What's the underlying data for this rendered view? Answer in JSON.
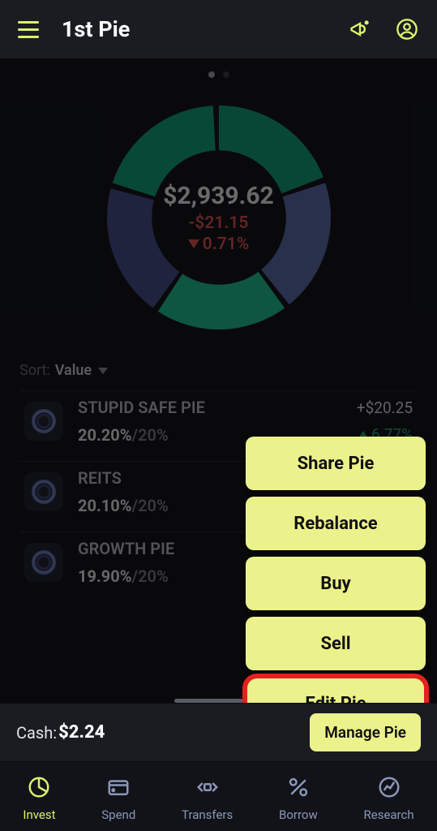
{
  "header": {
    "title": "1st Pie"
  },
  "colors": {
    "accent": "#d9f26e",
    "menu_bg": "#ecf28b",
    "negative": "#d9534f",
    "positive": "#2fa56a",
    "highlight_ring": "#e62020",
    "background": "#14161c"
  },
  "pagination": {
    "count": 2,
    "active": 0
  },
  "chart": {
    "type": "donut",
    "total": "$2,939.62",
    "change_abs": "-$21.15",
    "change_pct": "0.71%",
    "change_dir": "down",
    "slices": [
      {
        "color": "#159e76",
        "pct": 20
      },
      {
        "color": "#5a6aa8",
        "pct": 20
      },
      {
        "color": "#1fbf8e",
        "pct": 20
      },
      {
        "color": "#454f8a",
        "pct": 20
      },
      {
        "color": "#13a07a",
        "pct": 20
      }
    ],
    "inner_radius": 0.6,
    "outer_radius": 1.0
  },
  "sort": {
    "label": "Sort:",
    "value": "Value"
  },
  "holdings": [
    {
      "name": "STUPID SAFE PIE",
      "actual": "20.20%",
      "target": "20%",
      "value": "+$20.25",
      "change": "6.77%"
    },
    {
      "name": "REITS",
      "actual": "20.10%",
      "target": "20%",
      "value": "",
      "change": ""
    },
    {
      "name": "GROWTH PIE",
      "actual": "19.90%",
      "target": "20%",
      "value": "",
      "change": ""
    }
  ],
  "popup": {
    "items": [
      "Share Pie",
      "Rebalance",
      "Buy",
      "Sell",
      "Edit Pie"
    ],
    "highlighted_index": 4
  },
  "cash": {
    "label": "Cash:",
    "amount": "$2.24",
    "manage_label": "Manage Pie"
  },
  "nav": {
    "items": [
      {
        "label": "Invest",
        "icon": "pie",
        "active": true
      },
      {
        "label": "Spend",
        "icon": "card",
        "active": false
      },
      {
        "label": "Transfers",
        "icon": "transfer",
        "active": false
      },
      {
        "label": "Borrow",
        "icon": "percent",
        "active": false
      },
      {
        "label": "Research",
        "icon": "research",
        "active": false
      }
    ]
  }
}
